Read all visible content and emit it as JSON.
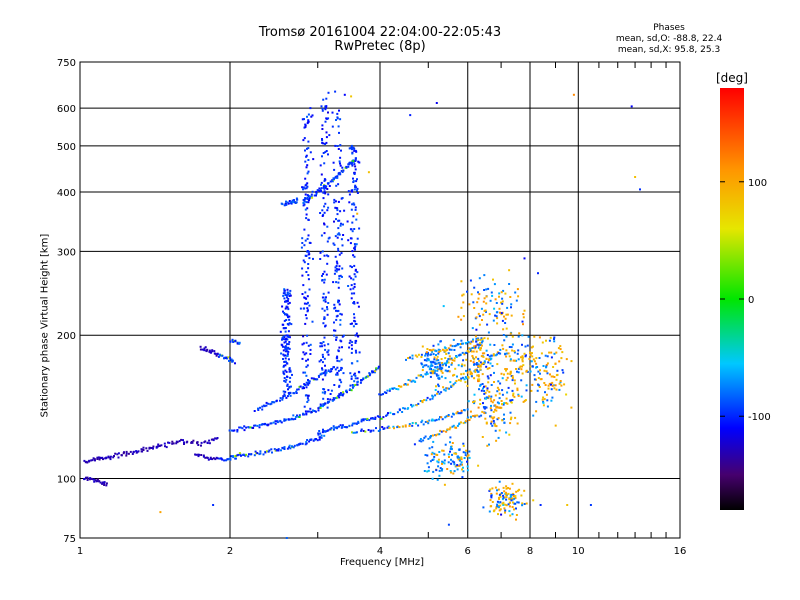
{
  "chart_data": {
    "type": "scatter",
    "title": "Tromsø 20161004 22:04:00-22:05:43",
    "subtitle": "RwPretec (8p)",
    "phase_stats": {
      "header": "Phases",
      "o_line": "mean, sd,O: -88.8, 22.4",
      "x_line": "mean, sd,X:  95.8, 25.3"
    },
    "xlabel": "Frequency [MHz]",
    "ylabel": "Stationary phase Virtual Height [km]",
    "x_scale": "log",
    "y_scale": "log",
    "xlim": [
      1,
      16
    ],
    "ylim": [
      75,
      750
    ],
    "x_ticks": [
      1,
      2,
      4,
      6,
      8,
      10,
      16
    ],
    "y_ticks": [
      75,
      100,
      200,
      300,
      400,
      500,
      600,
      750
    ],
    "x_minor_ticks": [
      3,
      5,
      7,
      9,
      11,
      12,
      13,
      14,
      15
    ],
    "grid": true,
    "colorbar": {
      "label": "[deg]",
      "ticks": [
        100,
        0,
        -100
      ],
      "range": [
        -180,
        180
      ],
      "colormap": "rainbow (black-purple-blue-cyan-green-yellow-orange-red)"
    },
    "series": [
      {
        "traces": [
          [
            [
              1.02,
              108
            ],
            [
              1.08,
              110
            ],
            [
              1.15,
              111
            ],
            [
              1.25,
              113
            ],
            [
              1.35,
              115
            ],
            [
              1.45,
              117
            ],
            [
              1.6,
              120
            ],
            [
              1.75,
              118
            ],
            [
              1.9,
              122
            ]
          ],
          [
            [
              1.02,
              100
            ],
            [
              1.08,
              99
            ],
            [
              1.14,
              97
            ]
          ],
          [
            [
              1.75,
              188
            ],
            [
              1.85,
              184
            ],
            [
              1.95,
              180
            ],
            [
              2.05,
              176
            ]
          ],
          [
            [
              2.0,
              195
            ],
            [
              2.1,
              193
            ]
          ],
          [
            [
              1.7,
              112
            ],
            [
              1.85,
              110
            ],
            [
              2.0,
              110
            ],
            [
              2.1,
              112
            ],
            [
              2.3,
              113
            ],
            [
              2.5,
              115
            ],
            [
              2.7,
              117
            ],
            [
              2.9,
              120
            ],
            [
              3.1,
              123
            ]
          ],
          [
            [
              2.0,
              126
            ],
            [
              2.2,
              128
            ],
            [
              2.4,
              130
            ],
            [
              2.6,
              133
            ],
            [
              2.8,
              136
            ],
            [
              3.0,
              140
            ],
            [
              3.2,
              146
            ],
            [
              3.4,
              152
            ],
            [
              3.6,
              158
            ],
            [
              3.8,
              165
            ],
            [
              4.0,
              172
            ]
          ],
          [
            [
              2.25,
              140
            ],
            [
              2.45,
              145
            ],
            [
              2.65,
              150
            ],
            [
              2.85,
              158
            ],
            [
              3.05,
              165
            ],
            [
              3.25,
              172
            ]
          ],
          [
            [
              2.8,
              380
            ],
            [
              2.95,
              395
            ],
            [
              3.1,
              410
            ],
            [
              3.25,
              430
            ],
            [
              3.45,
              455
            ],
            [
              3.6,
              470
            ]
          ],
          [
            [
              2.55,
              375
            ],
            [
              2.65,
              380
            ],
            [
              2.75,
              385
            ]
          ],
          [
            [
              3.0,
              125
            ],
            [
              3.2,
              127
            ],
            [
              3.4,
              129
            ],
            [
              3.7,
              132
            ],
            [
              4.0,
              135
            ],
            [
              4.5,
              140
            ],
            [
              5.0,
              147
            ],
            [
              5.5,
              155
            ],
            [
              6.0,
              165
            ],
            [
              6.5,
              176
            ],
            [
              7.0,
              186
            ]
          ],
          [
            [
              4.0,
              150
            ],
            [
              4.4,
              156
            ],
            [
              4.8,
              163
            ],
            [
              5.2,
              170
            ],
            [
              5.6,
              178
            ],
            [
              6.0,
              185
            ],
            [
              6.4,
              192
            ]
          ],
          [
            [
              3.5,
              125
            ],
            [
              4.0,
              127
            ],
            [
              4.5,
              129
            ],
            [
              5.0,
              132
            ],
            [
              5.5,
              135
            ],
            [
              6.0,
              140
            ]
          ],
          [
            [
              4.5,
              178
            ],
            [
              5.0,
              183
            ],
            [
              5.5,
              188
            ],
            [
              6.0,
              193
            ],
            [
              6.5,
              197
            ]
          ],
          [
            [
              4.8,
              120
            ],
            [
              5.3,
              125
            ],
            [
              5.8,
              130
            ],
            [
              6.3,
              137
            ]
          ]
        ],
        "columns": [
          {
            "f": 2.85,
            "h_min": 140,
            "h_max": 600
          },
          {
            "f": 3.1,
            "h_min": 140,
            "h_max": 650
          },
          {
            "f": 3.3,
            "h_min": 150,
            "h_max": 600
          },
          {
            "f": 3.55,
            "h_min": 160,
            "h_max": 500
          },
          {
            "f": 2.6,
            "h_min": 150,
            "h_max": 250
          }
        ],
        "clusters": [
          {
            "f": 6.3,
            "h": 175,
            "spread_f": 0.9,
            "spread_h": 40
          },
          {
            "f": 6.8,
            "h": 140,
            "spread_f": 1.0,
            "spread_h": 30
          },
          {
            "f": 7.5,
            "h": 170,
            "spread_f": 1.2,
            "spread_h": 45
          },
          {
            "f": 8.7,
            "h": 165,
            "spread_f": 1.2,
            "spread_h": 40
          },
          {
            "f": 5.5,
            "h": 110,
            "spread_f": 1.0,
            "spread_h": 15
          },
          {
            "f": 7.2,
            "h": 90,
            "spread_f": 1.0,
            "spread_h": 10
          },
          {
            "f": 5.2,
            "h": 175,
            "spread_f": 0.6,
            "spread_h": 25
          },
          {
            "f": 6.7,
            "h": 230,
            "spread_f": 1.4,
            "spread_h": 50
          }
        ],
        "isolated_points": [
          [
            3.25,
            650
          ],
          [
            3.5,
            635
          ],
          [
            5.2,
            615
          ],
          [
            4.6,
            580
          ],
          [
            9.8,
            640
          ],
          [
            12.8,
            605
          ],
          [
            13.0,
            430
          ],
          [
            13.3,
            405
          ],
          [
            2.9,
            600
          ],
          [
            3.4,
            640
          ],
          [
            7.8,
            290
          ],
          [
            8.3,
            270
          ],
          [
            1.45,
            85
          ],
          [
            1.85,
            88
          ],
          [
            8.4,
            88
          ],
          [
            9.5,
            88
          ],
          [
            10.6,
            88
          ],
          [
            5.5,
            80
          ],
          [
            7.5,
            82
          ],
          [
            7.0,
            84
          ],
          [
            2.6,
            75
          ],
          [
            4.7,
            118
          ],
          [
            5.4,
            97
          ],
          [
            3.8,
            440
          ],
          [
            3.6,
            360
          ]
        ]
      }
    ]
  }
}
